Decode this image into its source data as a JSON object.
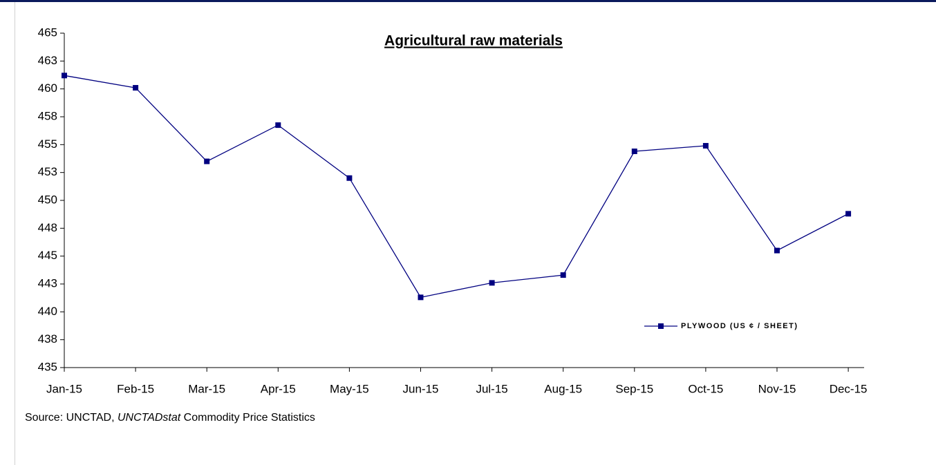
{
  "chart_data": {
    "type": "line",
    "title": "Agricultural raw materials",
    "categories": [
      "Jan-15",
      "Feb-15",
      "Mar-15",
      "Apr-15",
      "May-15",
      "Jun-15",
      "Jul-15",
      "Aug-15",
      "Sep-15",
      "Oct-15",
      "Nov-15",
      "Dec-15"
    ],
    "series": [
      {
        "name": "PLYWOOD (US ¢ / SHEET)",
        "color": "#000080",
        "values": [
          461.2,
          460.1,
          453.5,
          456.75,
          452.0,
          441.3,
          442.6,
          443.3,
          454.4,
          454.9,
          445.5,
          448.8
        ]
      }
    ],
    "ylim": [
      435,
      465
    ],
    "yticks": [
      435,
      {
        "value": 437.5,
        "label": "438"
      },
      440,
      {
        "value": 442.5,
        "label": "443"
      },
      445,
      {
        "value": 447.5,
        "label": "448"
      },
      450,
      {
        "value": 452.5,
        "label": "453"
      },
      455,
      {
        "value": 457.5,
        "label": "458"
      },
      460,
      {
        "value": 462.5,
        "label": "463"
      },
      465
    ],
    "grid": false,
    "legend": "lower right"
  },
  "source": [
    "Source: UNCTAD, ",
    "UNCTADstat",
    " Commodity Price Statistics"
  ]
}
